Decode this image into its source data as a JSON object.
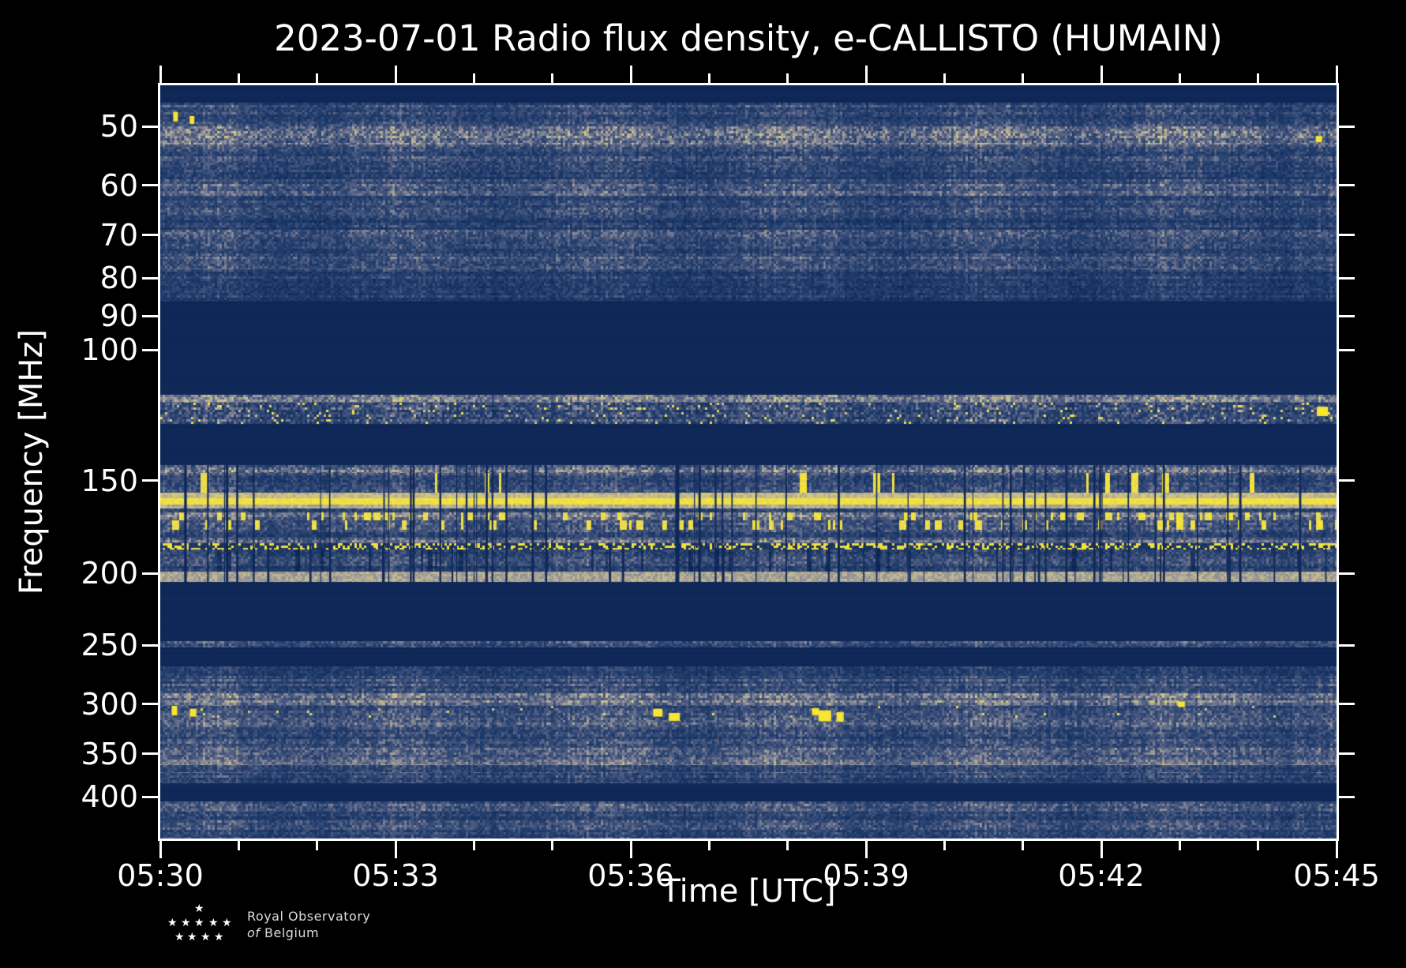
{
  "logo": {
    "line1": "Royal Observatory",
    "line2_italic": "of",
    "line2_rest": "Belgium"
  },
  "chart_data": {
    "type": "heatmap",
    "subtype": "radio-spectrogram",
    "title": "2023-07-01 Radio flux density, e-CALLISTO (HUMAIN)",
    "xlabel": "Time [UTC]",
    "ylabel": "Frequency [MHz]",
    "x_start": "05:30",
    "x_end": "05:45",
    "x_total_minutes": 15,
    "x_major_every_min": 3,
    "x_minor_every_min": 1,
    "x_tick_labels": [
      "05:30",
      "05:33",
      "05:36",
      "05:39",
      "05:42",
      "05:45"
    ],
    "y_scale": "log",
    "y_range_mhz": [
      44,
      455
    ],
    "y_tick_values": [
      50,
      60,
      70,
      80,
      90,
      100,
      150,
      200,
      250,
      300,
      350,
      400
    ],
    "grid": false,
    "legend": "none",
    "colormap_stops": [
      [
        0.0,
        "#0c2454"
      ],
      [
        0.18,
        "#16305f"
      ],
      [
        0.38,
        "#24406f"
      ],
      [
        0.55,
        "#4c5a80"
      ],
      [
        0.7,
        "#8b8c97"
      ],
      [
        0.82,
        "#c7bd92"
      ],
      [
        0.93,
        "#ecdb4e"
      ],
      [
        1.0,
        "#fbe92a"
      ]
    ],
    "bands": [
      {
        "f": [
          44,
          46.5
        ],
        "style": "dark"
      },
      {
        "f": [
          46.5,
          50
        ],
        "style": "noise",
        "level": 0.42
      },
      {
        "f": [
          50,
          53
        ],
        "style": "noise",
        "level": 0.62,
        "spread": 0.35
      },
      {
        "f": [
          53,
          56
        ],
        "style": "noise",
        "level": 0.45
      },
      {
        "f": [
          56,
          59
        ],
        "style": "noise",
        "level": 0.36
      },
      {
        "f": [
          59,
          62
        ],
        "style": "noise",
        "level": 0.5
      },
      {
        "f": [
          62,
          66
        ],
        "style": "noise",
        "level": 0.4
      },
      {
        "f": [
          66,
          69
        ],
        "style": "noise",
        "level": 0.35
      },
      {
        "f": [
          69,
          72
        ],
        "style": "noise",
        "level": 0.48
      },
      {
        "f": [
          72,
          75
        ],
        "style": "noise",
        "level": 0.38
      },
      {
        "f": [
          75,
          78
        ],
        "style": "noise",
        "level": 0.48
      },
      {
        "f": [
          78,
          82
        ],
        "style": "noise",
        "level": 0.36
      },
      {
        "f": [
          82,
          86
        ],
        "style": "noise",
        "level": 0.3
      },
      {
        "f": [
          86,
          115
        ],
        "style": "dark"
      },
      {
        "f": [
          115,
          118
        ],
        "style": "noise",
        "level": 0.62,
        "spread": 0.3
      },
      {
        "f": [
          118,
          126
        ],
        "style": "noise",
        "level": 0.45,
        "spread": 0.4,
        "sparks": 0.05
      },
      {
        "f": [
          126,
          143
        ],
        "style": "dark"
      },
      {
        "f": [
          143,
          146.5
        ],
        "style": "noise",
        "level": 0.58,
        "spread": 0.35
      },
      {
        "f": [
          146.5,
          156
        ],
        "style": "noise",
        "level": 0.45,
        "streaks": 0.025
      },
      {
        "f": [
          156,
          158.5
        ],
        "style": "beige",
        "level": 0.72
      },
      {
        "f": [
          158.5,
          161.5
        ],
        "style": "yellow"
      },
      {
        "f": [
          161.5,
          163.5
        ],
        "style": "beige",
        "level": 0.68
      },
      {
        "f": [
          163.5,
          165.5
        ],
        "style": "noise",
        "level": 0.42
      },
      {
        "f": [
          165.5,
          170
        ],
        "style": "noise",
        "level": 0.6,
        "streaks": 0.12
      },
      {
        "f": [
          170,
          175
        ],
        "style": "noise",
        "level": 0.45,
        "streaks": 0.1
      },
      {
        "f": [
          175,
          179
        ],
        "style": "noise",
        "level": 0.42
      },
      {
        "f": [
          179,
          182.5
        ],
        "style": "noise",
        "level": 0.6
      },
      {
        "f": [
          182.5,
          186
        ],
        "style": "ydots"
      },
      {
        "f": [
          186,
          199
        ],
        "style": "noise",
        "level": 0.42,
        "darkstreaks": 0.06
      },
      {
        "f": [
          199,
          205.5
        ],
        "style": "beige",
        "level": 0.66
      },
      {
        "f": [
          205.5,
          247
        ],
        "style": "dark"
      },
      {
        "f": [
          247,
          252
        ],
        "style": "noise",
        "level": 0.5
      },
      {
        "f": [
          252,
          267
        ],
        "style": "dark"
      },
      {
        "f": [
          267,
          278
        ],
        "style": "noise",
        "level": 0.35
      },
      {
        "f": [
          278,
          290
        ],
        "style": "noise",
        "level": 0.45
      },
      {
        "f": [
          290,
          302
        ],
        "style": "noise",
        "level": 0.62,
        "spread": 0.3
      },
      {
        "f": [
          302,
          313
        ],
        "style": "noise",
        "level": 0.48,
        "sparks": 0.01
      },
      {
        "f": [
          313,
          325
        ],
        "style": "noise",
        "level": 0.52
      },
      {
        "f": [
          325,
          344
        ],
        "style": "noise",
        "level": 0.42
      },
      {
        "f": [
          344,
          357
        ],
        "style": "noise",
        "level": 0.5
      },
      {
        "f": [
          357,
          363
        ],
        "style": "noise",
        "level": 0.66,
        "spread": 0.25
      },
      {
        "f": [
          363,
          372
        ],
        "style": "noise",
        "level": 0.45
      },
      {
        "f": [
          372,
          384
        ],
        "style": "noise",
        "level": 0.38
      },
      {
        "f": [
          384,
          406
        ],
        "style": "dark"
      },
      {
        "f": [
          406,
          419
        ],
        "style": "noise",
        "level": 0.48
      },
      {
        "f": [
          419,
          431
        ],
        "style": "noise",
        "level": 0.38
      },
      {
        "f": [
          431,
          443
        ],
        "style": "noise",
        "level": 0.48
      },
      {
        "f": [
          443,
          455
        ],
        "style": "noise",
        "level": 0.42
      }
    ],
    "gap_lines": {
      "f_range": [
        143,
        206
      ],
      "count": 55,
      "extra_low_count": 22,
      "extra_low_f_range": [
        183,
        206
      ]
    },
    "hotspots": [
      {
        "t": 0.013,
        "f": 48.5,
        "w": 6,
        "h": 12
      },
      {
        "t": 0.027,
        "f": 49.0,
        "w": 6,
        "h": 10
      },
      {
        "t": 0.012,
        "f": 306,
        "w": 7,
        "h": 12
      },
      {
        "t": 0.028,
        "f": 308,
        "w": 8,
        "h": 10
      },
      {
        "t": 0.423,
        "f": 308,
        "w": 12,
        "h": 10
      },
      {
        "t": 0.437,
        "f": 312,
        "w": 14,
        "h": 10
      },
      {
        "t": 0.557,
        "f": 307,
        "w": 9,
        "h": 9
      },
      {
        "t": 0.565,
        "f": 311,
        "w": 16,
        "h": 14
      },
      {
        "t": 0.578,
        "f": 312,
        "w": 9,
        "h": 12
      },
      {
        "t": 0.868,
        "f": 300,
        "w": 9,
        "h": 7
      },
      {
        "t": 0.985,
        "f": 52,
        "w": 8,
        "h": 8
      },
      {
        "t": 0.988,
        "f": 121,
        "w": 14,
        "h": 12
      }
    ]
  }
}
